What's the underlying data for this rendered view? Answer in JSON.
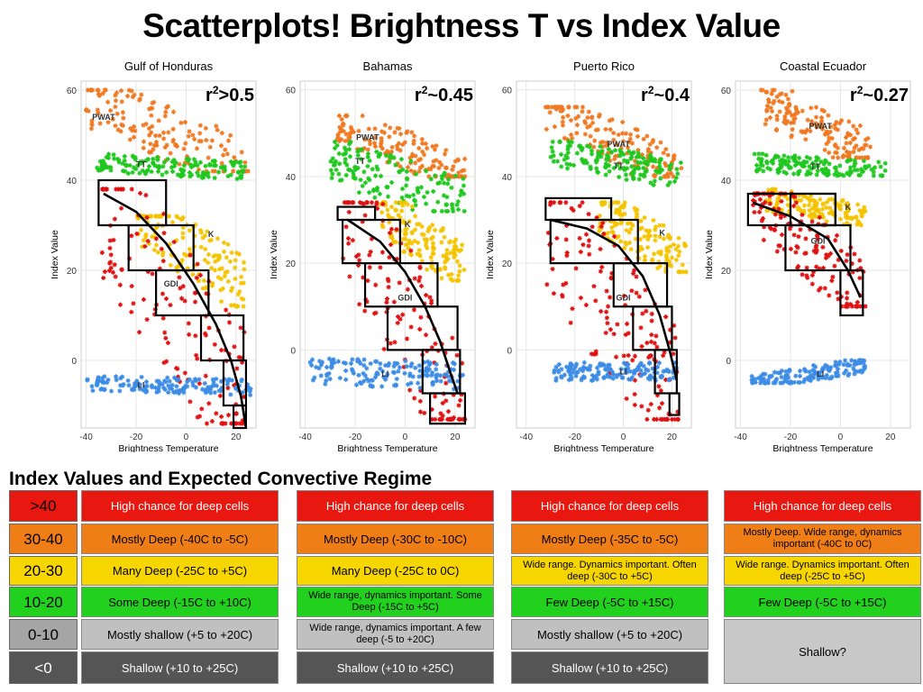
{
  "title": "Scatterplots!  Brightness T vs Index Value",
  "subtitle": "Index Values and Expected Convective Regime",
  "colors": {
    "PWAT": "#f07820",
    "TT": "#1ec81e",
    "K": "#f5c400",
    "GDI": "#e01010",
    "LI": "#3c8ce6"
  },
  "chart_data": [
    {
      "type": "scatter",
      "title": "Gulf of Honduras",
      "r2": "r",
      "r2_text": ">0.5",
      "xlabel": "Brightness Temperature",
      "ylabel": "Index Value",
      "xlim": [
        -42,
        28
      ],
      "ylim": [
        -15,
        62
      ],
      "xticks": [
        -40,
        -20,
        0,
        20
      ],
      "yticks": [
        0,
        20,
        40,
        60
      ],
      "clouds": [
        {
          "name": "PWAT",
          "label_at": [
            -33,
            54
          ],
          "xr": [
            -40,
            25
          ],
          "yr": [
            42,
            60
          ],
          "trend": [
            [
              -40,
              58
            ],
            [
              25,
              43
            ]
          ]
        },
        {
          "name": "TT",
          "label_at": [
            -18,
            43.5
          ],
          "xr": [
            -36,
            24
          ],
          "yr": [
            40,
            46
          ],
          "trend": [
            [
              -36,
              44
            ],
            [
              24,
              42
            ]
          ]
        },
        {
          "name": "K",
          "label_at": [
            10,
            28
          ],
          "xr": [
            -20,
            24
          ],
          "yr": [
            12,
            32
          ],
          "trend": [
            [
              -20,
              33
            ],
            [
              24,
              16
            ]
          ]
        },
        {
          "name": "GDI",
          "label_at": [
            -6,
            17
          ],
          "xr": [
            -34,
            24
          ],
          "yr": [
            -14,
            38
          ],
          "trend": [
            [
              -34,
              37
            ],
            [
              24,
              -12
            ]
          ]
        },
        {
          "name": "LI",
          "label_at": [
            -18,
            -5.5
          ],
          "xr": [
            -40,
            26
          ],
          "yr": [
            -8,
            -3
          ],
          "trend": [
            [
              -40,
              -5
            ],
            [
              26,
              -6
            ]
          ]
        }
      ],
      "boxes": [
        [
          -35,
          30,
          -8,
          40
        ],
        [
          -23,
          20,
          3,
          30
        ],
        [
          -12,
          10,
          9,
          20
        ],
        [
          6,
          0,
          23,
          10
        ],
        [
          15,
          -10,
          24,
          0
        ],
        [
          19,
          -15,
          24,
          -10
        ]
      ],
      "curve": [
        [
          -33,
          37
        ],
        [
          -20,
          33
        ],
        [
          -8,
          26
        ],
        [
          3,
          17
        ],
        [
          12,
          8
        ],
        [
          18,
          0
        ],
        [
          22,
          -8
        ],
        [
          24,
          -15
        ]
      ]
    },
    {
      "type": "scatter",
      "title": "Bahamas",
      "r2": "r",
      "r2_text": "~0.45",
      "xlabel": "Brightness Temperature",
      "ylabel": "Index Value",
      "xlim": [
        -42,
        28
      ],
      "ylim": [
        -18,
        62
      ],
      "xticks": [
        -40,
        -20,
        0,
        20
      ],
      "yticks": [
        0,
        20,
        40,
        60
      ],
      "clouds": [
        {
          "name": "PWAT",
          "label_at": [
            -15,
            49
          ],
          "xr": [
            -28,
            24
          ],
          "yr": [
            40,
            54
          ],
          "trend": [
            [
              -28,
              53
            ],
            [
              24,
              40
            ]
          ]
        },
        {
          "name": "TT",
          "label_at": [
            -18,
            43.5
          ],
          "xr": [
            -30,
            24
          ],
          "yr": [
            32,
            48
          ],
          "trend": [
            [
              -30,
              44
            ],
            [
              24,
              34
            ]
          ]
        },
        {
          "name": "K",
          "label_at": [
            1,
            29
          ],
          "xr": [
            -10,
            24
          ],
          "yr": [
            16,
            34
          ],
          "trend": [
            [
              -10,
              33
            ],
            [
              24,
              18
            ]
          ]
        },
        {
          "name": "GDI",
          "label_at": [
            0,
            12
          ],
          "xr": [
            -25,
            24
          ],
          "yr": [
            -16,
            34
          ],
          "trend": [
            [
              -25,
              33
            ],
            [
              24,
              -14
            ]
          ]
        },
        {
          "name": "LI",
          "label_at": [
            -8,
            -5.5
          ],
          "xr": [
            -38,
            24
          ],
          "yr": [
            -10,
            -1
          ],
          "trend": [
            [
              -38,
              -5
            ],
            [
              24,
              -6
            ]
          ]
        }
      ],
      "boxes": [
        [
          -27,
          30,
          -12,
          33
        ],
        [
          -25,
          20,
          -2,
          30
        ],
        [
          -16,
          10,
          13,
          20
        ],
        [
          -7,
          0,
          21,
          10
        ],
        [
          7,
          -10,
          22,
          0
        ],
        [
          10,
          -17,
          24,
          -10
        ]
      ],
      "curve": [
        [
          -23,
          30
        ],
        [
          -10,
          25
        ],
        [
          0,
          18
        ],
        [
          8,
          10
        ],
        [
          14,
          2
        ],
        [
          18,
          -5
        ],
        [
          21,
          -10
        ]
      ]
    },
    {
      "type": "scatter",
      "title": "Puerto Rico",
      "r2": "r",
      "r2_text": "~0.4",
      "xlabel": "Brightness Temperature",
      "ylabel": "Index Value",
      "xlim": [
        -44,
        28
      ],
      "ylim": [
        -18,
        62
      ],
      "xticks": [
        -40,
        -20,
        0,
        20
      ],
      "yticks": [
        0,
        20,
        40,
        60
      ],
      "clouds": [
        {
          "name": "PWAT",
          "label_at": [
            -2,
            47.5
          ],
          "xr": [
            -32,
            24
          ],
          "yr": [
            40,
            56
          ],
          "trend": [
            [
              -32,
              56
            ],
            [
              24,
              40
            ]
          ]
        },
        {
          "name": "TT",
          "label_at": [
            -2,
            42.5
          ],
          "xr": [
            -30,
            24
          ],
          "yr": [
            38,
            48
          ],
          "trend": [
            [
              -30,
              46
            ],
            [
              24,
              40
            ]
          ]
        },
        {
          "name": "K",
          "label_at": [
            16,
            27
          ],
          "xr": [
            -10,
            26
          ],
          "yr": [
            18,
            34
          ],
          "trend": [
            [
              -10,
              32
            ],
            [
              26,
              20
            ]
          ]
        },
        {
          "name": "GDI",
          "label_at": [
            0,
            12
          ],
          "xr": [
            -32,
            24
          ],
          "yr": [
            -16,
            34
          ],
          "trend": [
            [
              -32,
              32
            ],
            [
              24,
              -14
            ]
          ]
        },
        {
          "name": "LI",
          "label_at": [
            0,
            -5
          ],
          "xr": [
            -30,
            22
          ],
          "yr": [
            -8,
            -2
          ],
          "trend": [
            [
              -30,
              -5
            ],
            [
              22,
              -5
            ]
          ]
        }
      ],
      "boxes": [
        [
          -32,
          30,
          -5,
          35
        ],
        [
          -30,
          20,
          6,
          30
        ],
        [
          -4,
          10,
          18,
          20
        ],
        [
          4,
          0,
          20,
          10
        ],
        [
          13,
          -10,
          22,
          0
        ],
        [
          19,
          -15,
          23,
          -10
        ]
      ],
      "curve": [
        [
          -30,
          30
        ],
        [
          -15,
          28
        ],
        [
          -2,
          24
        ],
        [
          8,
          17
        ],
        [
          15,
          8
        ],
        [
          19,
          0
        ],
        [
          22,
          -7
        ]
      ]
    },
    {
      "type": "scatter",
      "title": "Coastal Ecuador",
      "r2": "r",
      "r2_text": "~0.27",
      "xlabel": "Brightness Temperature",
      "ylabel": "Index Value",
      "xlim": [
        -42,
        28
      ],
      "ylim": [
        -15,
        62
      ],
      "xticks": [
        -40,
        -20,
        0,
        20
      ],
      "yticks": [
        0,
        20,
        40,
        60
      ],
      "clouds": [
        {
          "name": "PWAT",
          "label_at": [
            -8,
            52
          ],
          "xr": [
            -32,
            12
          ],
          "yr": [
            45,
            60
          ],
          "trend": [
            [
              -32,
              58
            ],
            [
              12,
              46
            ]
          ]
        },
        {
          "name": "TT",
          "label_at": [
            -10,
            43
          ],
          "xr": [
            -35,
            18
          ],
          "yr": [
            41,
            47
          ],
          "trend": [
            [
              -35,
              44
            ],
            [
              18,
              42
            ]
          ]
        },
        {
          "name": "K",
          "label_at": [
            3,
            34
          ],
          "xr": [
            -30,
            10
          ],
          "yr": [
            30,
            38
          ],
          "trend": [
            [
              -30,
              36
            ],
            [
              10,
              32
            ]
          ]
        },
        {
          "name": "GDI",
          "label_at": [
            -9,
            26.5
          ],
          "xr": [
            -35,
            10
          ],
          "yr": [
            12,
            37
          ],
          "trend": [
            [
              -35,
              37
            ],
            [
              10,
              14
            ]
          ]
        },
        {
          "name": "LI",
          "label_at": [
            -8,
            -3
          ],
          "xr": [
            -36,
            10
          ],
          "yr": [
            -5,
            0
          ],
          "trend": [
            [
              -36,
              -5
            ],
            [
              10,
              -1
            ]
          ]
        }
      ],
      "boxes": [
        [
          -37,
          30,
          -2,
          37
        ],
        [
          -22,
          20,
          4,
          30
        ],
        [
          -20,
          30,
          -2,
          37
        ],
        [
          0,
          10,
          9,
          20
        ]
      ],
      "curve": [
        [
          -35,
          35
        ],
        [
          -20,
          32
        ],
        [
          -5,
          27
        ],
        [
          3,
          20
        ],
        [
          8,
          14
        ]
      ]
    }
  ],
  "table": {
    "labels": [
      ">40",
      "30-40",
      "20-30",
      "10-20",
      "0-10",
      "<0"
    ],
    "label_colors": [
      "#e8170f",
      "#f07e16",
      "#f7d600",
      "#22d01e",
      "#a5a5a5",
      "#555555"
    ],
    "columns": [
      {
        "cells": [
          {
            "text": "High chance for deep cells",
            "color": "#e8170f",
            "fg": "#ffffff",
            "lines": 1
          },
          {
            "text": "Mostly Deep (-40C to -5C)",
            "color": "#f07e16"
          },
          {
            "text": "Many Deep (-25C to +5C)",
            "color": "#f7d600"
          },
          {
            "text": "Some Deep (-15C to +10C)",
            "color": "#22d01e"
          },
          {
            "text": "Mostly shallow (+5 to +20C)",
            "color": "#c0c0c0"
          },
          {
            "text": "Shallow (+10 to +25C)",
            "color": "#555555",
            "fg": "#ffffff"
          }
        ]
      },
      {
        "cells": [
          {
            "text": "High chance for deep cells",
            "color": "#e8170f",
            "fg": "#ffffff"
          },
          {
            "text": "Mostly Deep (-30C to -10C)",
            "color": "#f07e16"
          },
          {
            "text": "Many Deep (-25C to 0C)",
            "color": "#f7d600"
          },
          {
            "text": "Wide range, dynamics important. Some Deep (-15C to +5C)",
            "color": "#22d01e",
            "small": true
          },
          {
            "text": "Wide range, dynamics important. A few deep (-5 to +20C)",
            "color": "#c0c0c0",
            "small": true
          },
          {
            "text": "Shallow (+10 to +25C)",
            "color": "#555555",
            "fg": "#ffffff"
          }
        ]
      },
      {
        "cells": [
          {
            "text": "High chance for deep cells",
            "color": "#e8170f",
            "fg": "#ffffff"
          },
          {
            "text": "Mostly Deep (-35C to -5C)",
            "color": "#f07e16"
          },
          {
            "text": "Wide range. Dynamics important. Often deep (-30C to +5C)",
            "color": "#f7d600",
            "small": true
          },
          {
            "text": "Few Deep (-5C to +15C)",
            "color": "#22d01e"
          },
          {
            "text": "Mostly shallow (+5 to +20C)",
            "color": "#c0c0c0"
          },
          {
            "text": "Shallow (+10 to +25C)",
            "color": "#555555",
            "fg": "#ffffff"
          }
        ]
      },
      {
        "cells": [
          {
            "text": "High chance for deep cells",
            "color": "#e8170f",
            "fg": "#ffffff"
          },
          {
            "text": "Mostly Deep. Wide range, dynamics important  (-40C to 0C)",
            "color": "#f07e16",
            "small": true
          },
          {
            "text": "Wide range. Dynamics important. Often deep (-25C to +5C)",
            "color": "#f7d600",
            "small": true
          },
          {
            "text": "Few Deep (-5C to +15C)",
            "color": "#22d01e"
          },
          {
            "text": "Shallow?",
            "color": "#c8c8c8",
            "span": 2
          }
        ]
      }
    ]
  }
}
